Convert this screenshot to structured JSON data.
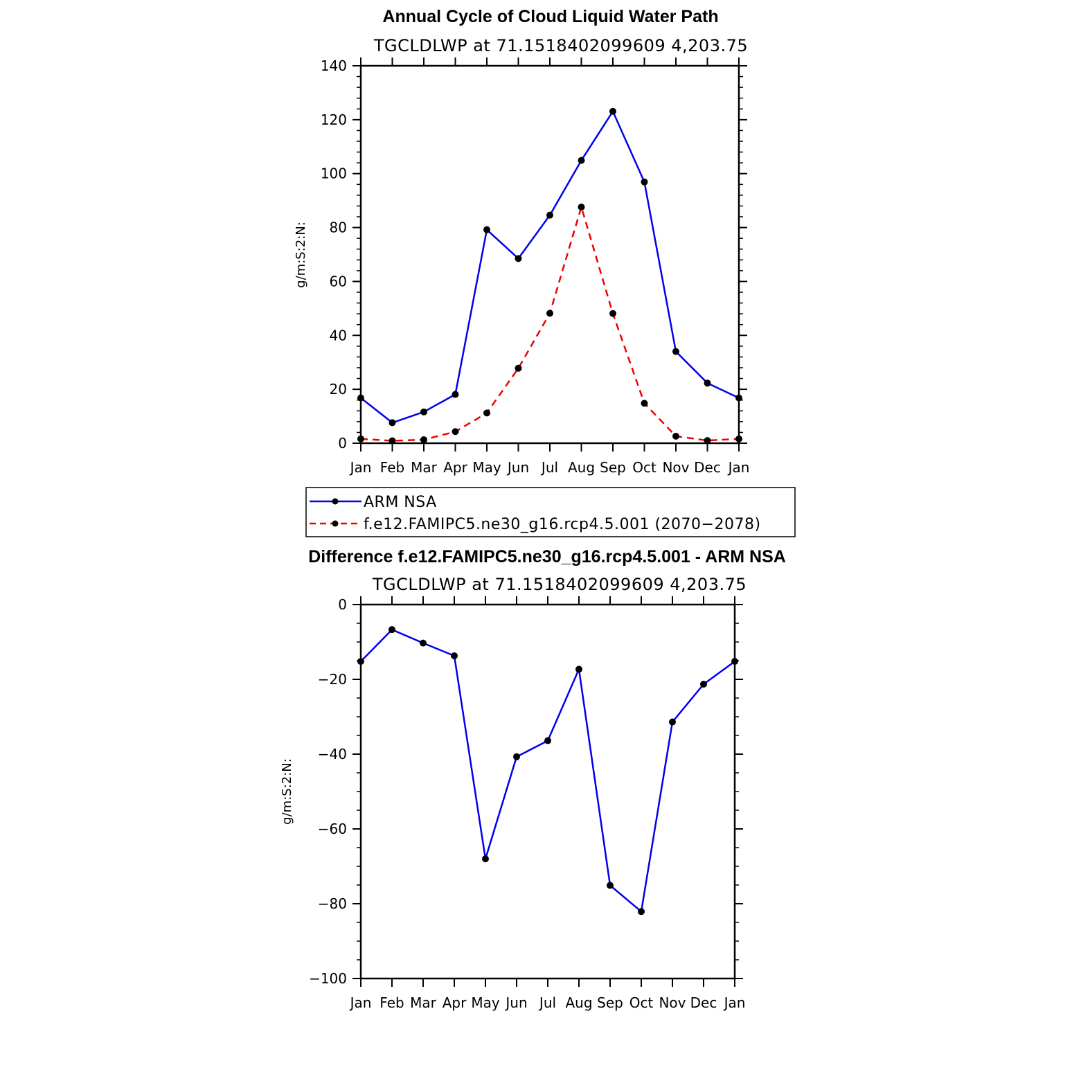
{
  "chart_data": [
    {
      "type": "line",
      "title": "Annual Cycle of Cloud Liquid Water Path",
      "subtitle": "TGCLDLWP at 71.1518402099609 4,203.75",
      "xlabel": "",
      "ylabel": "g/m:S:2:N:",
      "categories": [
        "Jan",
        "Feb",
        "Mar",
        "Apr",
        "May",
        "Jun",
        "Jul",
        "Aug",
        "Sep",
        "Oct",
        "Nov",
        "Dec",
        "Jan"
      ],
      "ylim": [
        0,
        140
      ],
      "yticks": [
        "0",
        "20",
        "40",
        "60",
        "80",
        "100",
        "120",
        "140"
      ],
      "series": [
        {
          "name": "ARM NSA",
          "color": "#0000ee",
          "dash": "solid",
          "values": [
            16.8,
            7.6,
            11.6,
            18.1,
            79.2,
            68.5,
            84.6,
            104.9,
            123.1,
            96.9,
            34.0,
            22.3,
            16.8
          ]
        },
        {
          "name": "f.e12.FAMIPC5.ne30_g16.rcp4.5.001 (2070−2078)",
          "color": "#ee0000",
          "dash": "dashed",
          "values": [
            1.6,
            0.9,
            1.3,
            4.3,
            11.2,
            27.8,
            48.2,
            87.6,
            48.1,
            14.8,
            2.6,
            1.0,
            1.6
          ]
        }
      ]
    },
    {
      "type": "line",
      "title": "Difference f.e12.FAMIPC5.ne30_g16.rcp4.5.001 - ARM NSA",
      "subtitle": "TGCLDLWP at 71.1518402099609 4,203.75",
      "xlabel": "",
      "ylabel": "g/m:S:2:N:",
      "categories": [
        "Jan",
        "Feb",
        "Mar",
        "Apr",
        "May",
        "Jun",
        "Jul",
        "Aug",
        "Sep",
        "Oct",
        "Nov",
        "Dec",
        "Jan"
      ],
      "ylim": [
        -100,
        0
      ],
      "yticks": [
        "−100",
        "−80",
        "−60",
        "−40",
        "−20",
        "0"
      ],
      "series": [
        {
          "name": "Difference",
          "color": "#0000ee",
          "dash": "solid",
          "values": [
            -15.2,
            -6.7,
            -10.3,
            -13.7,
            -68.0,
            -40.7,
            -36.4,
            -17.3,
            -75.1,
            -82.1,
            -31.4,
            -21.3,
            -15.2
          ]
        }
      ]
    }
  ],
  "legend": {
    "entries": [
      "ARM NSA",
      "f.e12.FAMIPC5.ne30_g16.rcp4.5.001 (2070−2078)"
    ]
  }
}
